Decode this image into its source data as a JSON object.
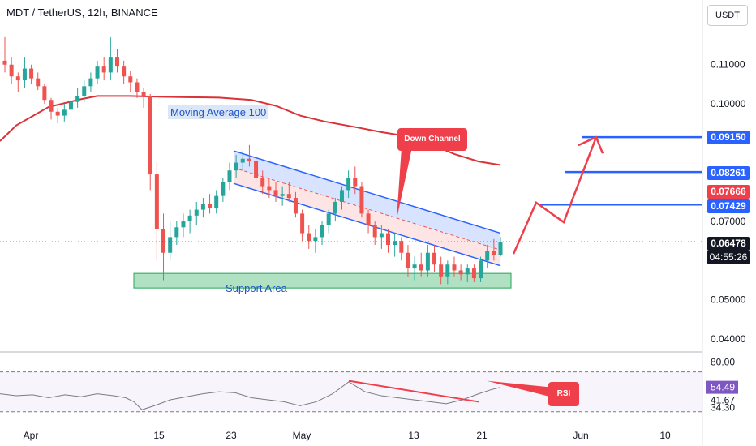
{
  "header": {
    "title": "MDT / TetherUS, 12h, BINANCE",
    "currency": "USDT"
  },
  "annotations": {
    "moving_average": "Moving Average 100",
    "support": "Support Area",
    "down_channel": "Down Channel",
    "rsi": "RSI"
  },
  "price_labels": {
    "l1": "0.09150",
    "l2": "0.08261",
    "l3": "0.07666",
    "l4": "0.07429",
    "l5": "0.06478",
    "countdown": "04:55:26"
  },
  "colors": {
    "up": "#26a69a",
    "down": "#ef5350",
    "ma": "#d93339",
    "channel": "#2962ff",
    "level": "#2962ff",
    "support_fill": "#8fd4a8",
    "rsi_line": "#787b86",
    "label_blue": "#2962ff",
    "label_red": "#ef3f4b",
    "label_dark": "#131722"
  },
  "chart_data": [
    {
      "type": "candlestick",
      "title": "MDT / TetherUS, 12h, BINANCE",
      "x_ticks": [
        "Apr",
        "15",
        "23",
        "May",
        "13",
        "21",
        "Jun",
        "10"
      ],
      "y_ticks": [
        0.11,
        0.1,
        0.07,
        0.05,
        0.04
      ],
      "y_tick_labels": [
        "0.11000",
        "0.10000",
        "0.07000",
        "0.05000",
        "0.04000"
      ],
      "ylim": [
        0.0367,
        0.1265
      ],
      "last_price": 0.06478,
      "moving_average_100": [
        [
          0,
          0.0905
        ],
        [
          20,
          0.0945
        ],
        [
          60,
          0.0992
        ],
        [
          100,
          0.1012
        ],
        [
          120,
          0.102
        ],
        [
          160,
          0.102
        ],
        [
          200,
          0.1018
        ],
        [
          230,
          0.1017
        ],
        [
          270,
          0.1016
        ],
        [
          310,
          0.101
        ],
        [
          340,
          0.0995
        ],
        [
          370,
          0.097
        ],
        [
          400,
          0.0955
        ],
        [
          440,
          0.094
        ],
        [
          470,
          0.0928
        ],
        [
          500,
          0.0918
        ],
        [
          530,
          0.0898
        ],
        [
          560,
          0.0872
        ],
        [
          590,
          0.0853
        ],
        [
          617,
          0.0844
        ]
      ],
      "down_channel": {
        "upper": [
          [
            288,
            0.088
          ],
          [
            617,
            0.067
          ]
        ],
        "mid": [
          [
            288,
            0.0837
          ],
          [
            617,
            0.0627
          ]
        ],
        "lower": [
          [
            288,
            0.0797
          ],
          [
            617,
            0.0587
          ]
        ]
      },
      "support_area": [
        0.0535,
        0.0555
      ],
      "projection": [
        [
          633,
          0.0617
        ],
        [
          661,
          0.0748
        ],
        [
          695,
          0.0698
        ],
        [
          735,
          0.0915
        ]
      ],
      "levels": [
        0.0915,
        0.0826,
        0.0743
      ],
      "candles": [
        {
          "o": 0.111,
          "h": 0.117,
          "l": 0.108,
          "c": 0.11
        },
        {
          "o": 0.11,
          "h": 0.112,
          "l": 0.105,
          "c": 0.107
        },
        {
          "o": 0.107,
          "h": 0.108,
          "l": 0.103,
          "c": 0.106
        },
        {
          "o": 0.106,
          "h": 0.112,
          "l": 0.104,
          "c": 0.109
        },
        {
          "o": 0.109,
          "h": 0.11,
          "l": 0.105,
          "c": 0.1065
        },
        {
          "o": 0.1065,
          "h": 0.108,
          "l": 0.1035,
          "c": 0.1045
        },
        {
          "o": 0.1045,
          "h": 0.105,
          "l": 0.1,
          "c": 0.101
        },
        {
          "o": 0.101,
          "h": 0.1015,
          "l": 0.096,
          "c": 0.098
        },
        {
          "o": 0.098,
          "h": 0.099,
          "l": 0.095,
          "c": 0.097
        },
        {
          "o": 0.097,
          "h": 0.1,
          "l": 0.0955,
          "c": 0.0985
        },
        {
          "o": 0.0985,
          "h": 0.102,
          "l": 0.0965,
          "c": 0.1005
        },
        {
          "o": 0.1005,
          "h": 0.104,
          "l": 0.099,
          "c": 0.102
        },
        {
          "o": 0.102,
          "h": 0.106,
          "l": 0.1005,
          "c": 0.1045
        },
        {
          "o": 0.1045,
          "h": 0.108,
          "l": 0.103,
          "c": 0.1065
        },
        {
          "o": 0.1065,
          "h": 0.111,
          "l": 0.105,
          "c": 0.1095
        },
        {
          "o": 0.1095,
          "h": 0.112,
          "l": 0.106,
          "c": 0.108
        },
        {
          "o": 0.108,
          "h": 0.117,
          "l": 0.106,
          "c": 0.112
        },
        {
          "o": 0.112,
          "h": 0.114,
          "l": 0.108,
          "c": 0.1095
        },
        {
          "o": 0.1095,
          "h": 0.111,
          "l": 0.105,
          "c": 0.107
        },
        {
          "o": 0.107,
          "h": 0.1085,
          "l": 0.103,
          "c": 0.1055
        },
        {
          "o": 0.1055,
          "h": 0.1065,
          "l": 0.1015,
          "c": 0.103
        },
        {
          "o": 0.103,
          "h": 0.104,
          "l": 0.099,
          "c": 0.102
        },
        {
          "o": 0.102,
          "h": 0.1025,
          "l": 0.078,
          "c": 0.082
        },
        {
          "o": 0.082,
          "h": 0.085,
          "l": 0.06,
          "c": 0.068
        },
        {
          "o": 0.068,
          "h": 0.072,
          "l": 0.055,
          "c": 0.062
        },
        {
          "o": 0.062,
          "h": 0.07,
          "l": 0.06,
          "c": 0.066
        },
        {
          "o": 0.066,
          "h": 0.07,
          "l": 0.064,
          "c": 0.0685
        },
        {
          "o": 0.0685,
          "h": 0.072,
          "l": 0.066,
          "c": 0.07
        },
        {
          "o": 0.07,
          "h": 0.073,
          "l": 0.067,
          "c": 0.0715
        },
        {
          "o": 0.0715,
          "h": 0.075,
          "l": 0.069,
          "c": 0.073
        },
        {
          "o": 0.073,
          "h": 0.076,
          "l": 0.071,
          "c": 0.0745
        },
        {
          "o": 0.0745,
          "h": 0.077,
          "l": 0.072,
          "c": 0.0735
        },
        {
          "o": 0.0735,
          "h": 0.078,
          "l": 0.072,
          "c": 0.0765
        },
        {
          "o": 0.0765,
          "h": 0.081,
          "l": 0.075,
          "c": 0.08
        },
        {
          "o": 0.08,
          "h": 0.085,
          "l": 0.078,
          "c": 0.083
        },
        {
          "o": 0.083,
          "h": 0.087,
          "l": 0.081,
          "c": 0.085
        },
        {
          "o": 0.085,
          "h": 0.088,
          "l": 0.083,
          "c": 0.086
        },
        {
          "o": 0.086,
          "h": 0.0895,
          "l": 0.084,
          "c": 0.0855
        },
        {
          "o": 0.0855,
          "h": 0.087,
          "l": 0.08,
          "c": 0.081
        },
        {
          "o": 0.081,
          "h": 0.083,
          "l": 0.077,
          "c": 0.079
        },
        {
          "o": 0.079,
          "h": 0.081,
          "l": 0.076,
          "c": 0.078
        },
        {
          "o": 0.078,
          "h": 0.08,
          "l": 0.075,
          "c": 0.0765
        },
        {
          "o": 0.0765,
          "h": 0.079,
          "l": 0.074,
          "c": 0.077
        },
        {
          "o": 0.077,
          "h": 0.08,
          "l": 0.075,
          "c": 0.076
        },
        {
          "o": 0.076,
          "h": 0.0775,
          "l": 0.071,
          "c": 0.072
        },
        {
          "o": 0.072,
          "h": 0.073,
          "l": 0.065,
          "c": 0.067
        },
        {
          "o": 0.067,
          "h": 0.069,
          "l": 0.063,
          "c": 0.065
        },
        {
          "o": 0.065,
          "h": 0.068,
          "l": 0.062,
          "c": 0.066
        },
        {
          "o": 0.066,
          "h": 0.07,
          "l": 0.064,
          "c": 0.069
        },
        {
          "o": 0.069,
          "h": 0.073,
          "l": 0.067,
          "c": 0.072
        },
        {
          "o": 0.072,
          "h": 0.076,
          "l": 0.07,
          "c": 0.075
        },
        {
          "o": 0.075,
          "h": 0.079,
          "l": 0.073,
          "c": 0.078
        },
        {
          "o": 0.078,
          "h": 0.083,
          "l": 0.076,
          "c": 0.081
        },
        {
          "o": 0.081,
          "h": 0.084,
          "l": 0.077,
          "c": 0.079
        },
        {
          "o": 0.079,
          "h": 0.08,
          "l": 0.071,
          "c": 0.072
        },
        {
          "o": 0.072,
          "h": 0.073,
          "l": 0.067,
          "c": 0.069
        },
        {
          "o": 0.069,
          "h": 0.07,
          "l": 0.064,
          "c": 0.066
        },
        {
          "o": 0.066,
          "h": 0.069,
          "l": 0.063,
          "c": 0.067
        },
        {
          "o": 0.067,
          "h": 0.068,
          "l": 0.062,
          "c": 0.064
        },
        {
          "o": 0.064,
          "h": 0.067,
          "l": 0.061,
          "c": 0.065
        },
        {
          "o": 0.065,
          "h": 0.066,
          "l": 0.06,
          "c": 0.062
        },
        {
          "o": 0.062,
          "h": 0.064,
          "l": 0.056,
          "c": 0.058
        },
        {
          "o": 0.058,
          "h": 0.061,
          "l": 0.055,
          "c": 0.059
        },
        {
          "o": 0.059,
          "h": 0.062,
          "l": 0.056,
          "c": 0.0575
        },
        {
          "o": 0.0575,
          "h": 0.064,
          "l": 0.056,
          "c": 0.062
        },
        {
          "o": 0.062,
          "h": 0.064,
          "l": 0.057,
          "c": 0.059
        },
        {
          "o": 0.059,
          "h": 0.061,
          "l": 0.054,
          "c": 0.056
        },
        {
          "o": 0.056,
          "h": 0.06,
          "l": 0.054,
          "c": 0.059
        },
        {
          "o": 0.059,
          "h": 0.061,
          "l": 0.056,
          "c": 0.0575
        },
        {
          "o": 0.0575,
          "h": 0.059,
          "l": 0.055,
          "c": 0.0565
        },
        {
          "o": 0.0565,
          "h": 0.059,
          "l": 0.0545,
          "c": 0.058
        },
        {
          "o": 0.058,
          "h": 0.059,
          "l": 0.0545,
          "c": 0.0555
        },
        {
          "o": 0.0555,
          "h": 0.061,
          "l": 0.0545,
          "c": 0.06
        },
        {
          "o": 0.06,
          "h": 0.064,
          "l": 0.058,
          "c": 0.0625
        },
        {
          "o": 0.0625,
          "h": 0.0655,
          "l": 0.06,
          "c": 0.0615
        },
        {
          "o": 0.0615,
          "h": 0.066,
          "l": 0.061,
          "c": 0.0648
        }
      ]
    },
    {
      "type": "line",
      "title": "RSI",
      "y_tick_labels": [
        "80.00",
        "54.49",
        "41.67",
        "34.30"
      ],
      "ylim": [
        20,
        90
      ],
      "bands": [
        70,
        30
      ],
      "x": [
        0,
        20,
        40,
        60,
        80,
        100,
        120,
        140,
        155,
        165,
        175,
        190,
        210,
        230,
        250,
        270,
        290,
        310,
        330,
        350,
        370,
        390,
        410,
        430,
        450,
        470,
        490,
        510,
        530,
        550,
        570,
        590,
        605,
        617
      ],
      "values": [
        48,
        46,
        47,
        44,
        47,
        45,
        48,
        46,
        44,
        40,
        32,
        36,
        42,
        45,
        48,
        50,
        49,
        44,
        42,
        40,
        36,
        40,
        48,
        60,
        50,
        46,
        44,
        42,
        40,
        38,
        42,
        48,
        52,
        54.5
      ],
      "trendline": [
        [
          430,
          61
        ],
        [
          590,
          40
        ]
      ],
      "trendline_right": [
        [
          600,
          61
        ],
        [
          680,
          48
        ]
      ]
    }
  ]
}
